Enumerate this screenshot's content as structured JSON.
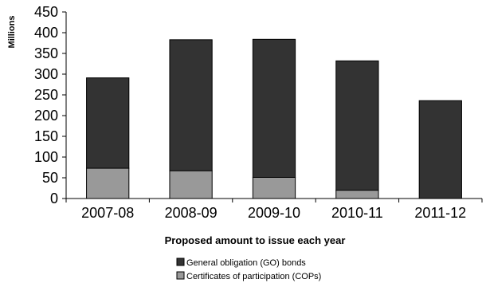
{
  "chart_data": {
    "type": "bar",
    "stacked": true,
    "categories": [
      "2007-08",
      "2008-09",
      "2009-10",
      "2010-11",
      "2011-12"
    ],
    "series": [
      {
        "name": "Certificates of participation (COPs)",
        "color": "#999999",
        "values": [
          73,
          67,
          51,
          20,
          0
        ]
      },
      {
        "name": "General obligation (GO) bonds",
        "color": "#333333",
        "values": [
          218,
          316,
          333,
          312,
          236
        ]
      }
    ],
    "title": "",
    "xlabel": "Proposed amount to issue each year",
    "ylabel": "Millions",
    "ylim": [
      0,
      450
    ],
    "yticks": [
      0,
      50,
      100,
      150,
      200,
      250,
      300,
      350,
      400,
      450
    ],
    "grid": false,
    "legend": {
      "position": "bottom",
      "order": [
        "General obligation (GO) bonds",
        "Certificates of participation (COPs)"
      ]
    }
  }
}
